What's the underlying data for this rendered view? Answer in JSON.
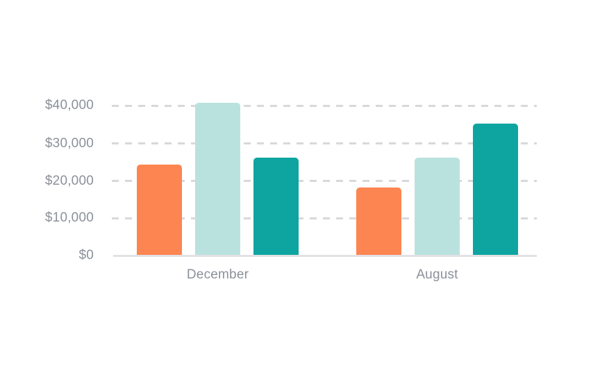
{
  "page": {
    "background_color": "#FFFFFF"
  },
  "chart_data": {
    "type": "bar",
    "title": "",
    "xlabel": "",
    "ylabel": "",
    "categories": [
      "December",
      "August"
    ],
    "series": [
      {
        "name": "orange",
        "color": "#FC8551",
        "values": [
          24000,
          18000
        ]
      },
      {
        "name": "light-teal",
        "color": "#B9E2DE",
        "values": [
          40500,
          26000
        ]
      },
      {
        "name": "dark-teal",
        "color": "#0EA5A0",
        "values": [
          26000,
          35000
        ]
      }
    ],
    "ylim": [
      0,
      40000
    ],
    "ytick_step": 10000,
    "ytick_labels": [
      "$0",
      "$10,000",
      "$20,000",
      "$30,000",
      "$40,000"
    ],
    "grid": "horizontal-dashed",
    "legend": "none",
    "colors": {
      "grid_line": "#D8D8DC",
      "axis_line": "#E2E2E6",
      "tick_text": "#8B909A"
    }
  }
}
